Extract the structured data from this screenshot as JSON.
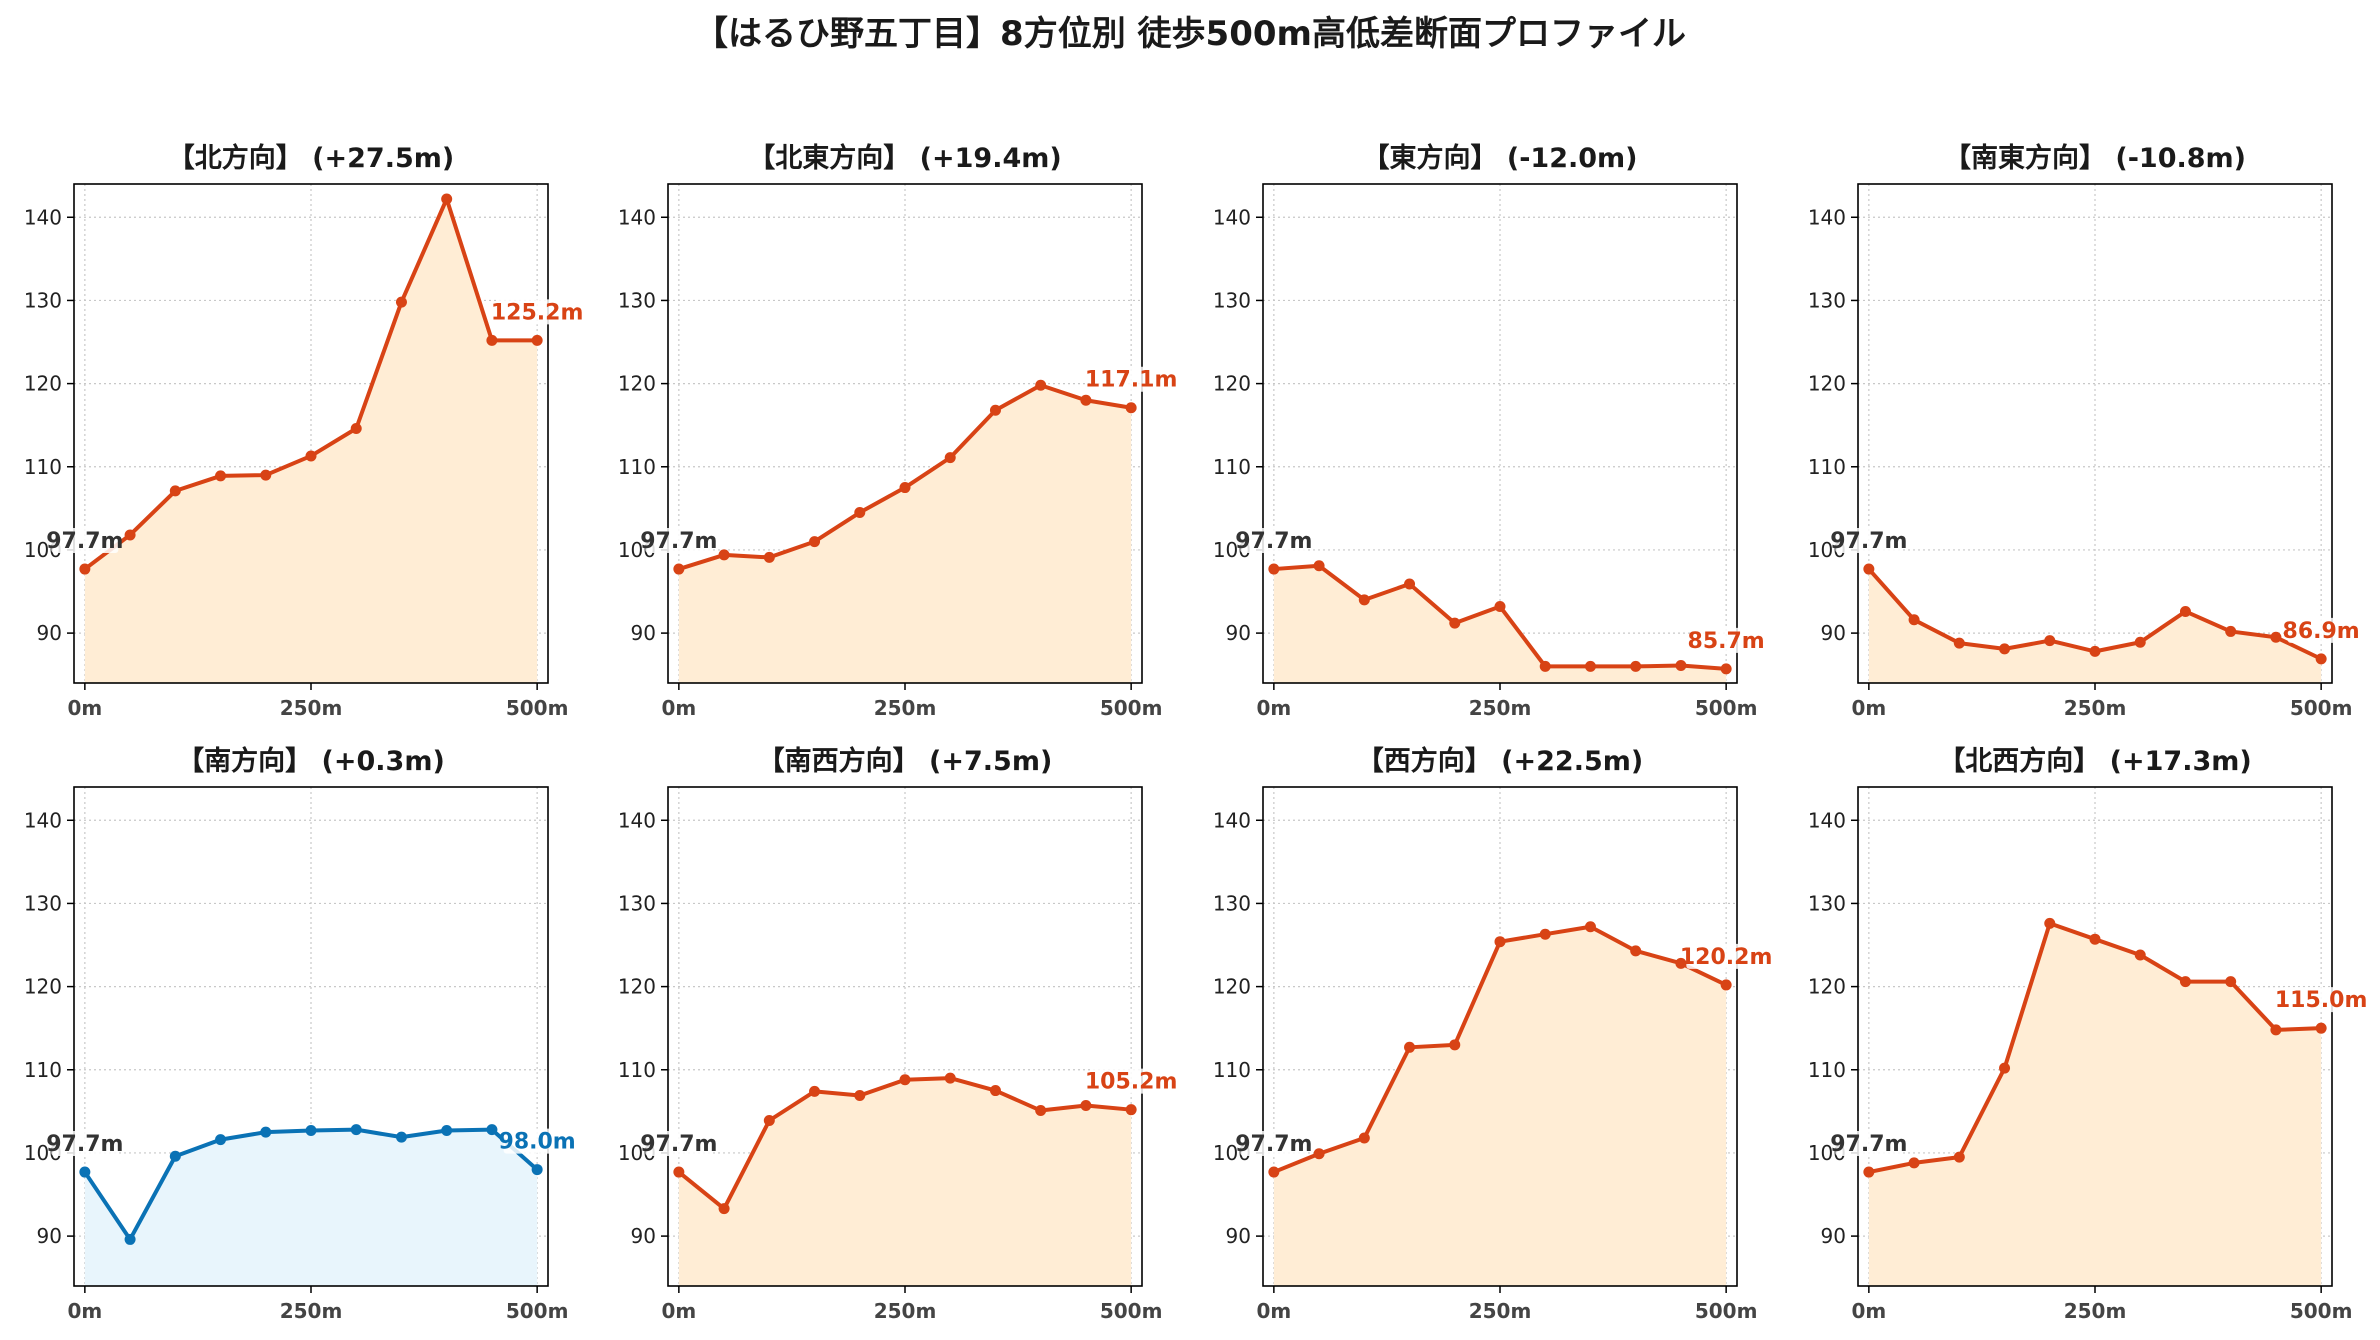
{
  "title": "【はるひ野五丁目】8方位別 徒歩500m高低差断面プロファイル",
  "colors": {
    "up_line": "#d84315",
    "up_fill": "#ffedd5",
    "flat_line": "#0a72b5",
    "flat_fill": "#e8f5fc",
    "start_label": "#333333",
    "grid": "#c8c8c8"
  },
  "chart_data": [
    {
      "type": "area",
      "title": "【北方向】 (+27.5m)",
      "x": [
        0,
        50,
        100,
        150,
        200,
        250,
        300,
        350,
        400,
        450,
        500
      ],
      "values": [
        97.7,
        101.8,
        107.1,
        108.9,
        109.0,
        111.3,
        114.6,
        129.8,
        142.2,
        125.2,
        125.2
      ],
      "start_label": "97.7m",
      "end_label": "125.2m",
      "xticks": [
        "0m",
        "250m",
        "500m"
      ],
      "yticks": [
        90,
        100,
        110,
        120,
        130,
        140
      ],
      "ylim": [
        84,
        144
      ],
      "xlim": [
        -12,
        512
      ],
      "grid": true,
      "color_scheme": "warm"
    },
    {
      "type": "area",
      "title": "【北東方向】 (+19.4m)",
      "x": [
        0,
        50,
        100,
        150,
        200,
        250,
        300,
        350,
        400,
        450,
        500
      ],
      "values": [
        97.7,
        99.4,
        99.1,
        101.0,
        104.5,
        107.5,
        111.1,
        116.8,
        119.8,
        118.0,
        117.1
      ],
      "start_label": "97.7m",
      "end_label": "117.1m",
      "xticks": [
        "0m",
        "250m",
        "500m"
      ],
      "yticks": [
        90,
        100,
        110,
        120,
        130,
        140
      ],
      "ylim": [
        84,
        144
      ],
      "xlim": [
        -12,
        512
      ],
      "grid": true,
      "color_scheme": "warm"
    },
    {
      "type": "area",
      "title": "【東方向】 (-12.0m)",
      "x": [
        0,
        50,
        100,
        150,
        200,
        250,
        300,
        350,
        400,
        450,
        500
      ],
      "values": [
        97.7,
        98.1,
        94.0,
        95.9,
        91.2,
        93.2,
        86.0,
        86.0,
        86.0,
        86.1,
        85.7
      ],
      "start_label": "97.7m",
      "end_label": "85.7m",
      "xticks": [
        "0m",
        "250m",
        "500m"
      ],
      "yticks": [
        90,
        100,
        110,
        120,
        130,
        140
      ],
      "ylim": [
        84,
        144
      ],
      "xlim": [
        -12,
        512
      ],
      "grid": true,
      "color_scheme": "warm"
    },
    {
      "type": "area",
      "title": "【南東方向】 (-10.8m)",
      "x": [
        0,
        50,
        100,
        150,
        200,
        250,
        300,
        350,
        400,
        450,
        500
      ],
      "values": [
        97.7,
        91.6,
        88.8,
        88.1,
        89.1,
        87.8,
        88.9,
        92.6,
        90.2,
        89.5,
        86.9
      ],
      "start_label": "97.7m",
      "end_label": "86.9m",
      "xticks": [
        "0m",
        "250m",
        "500m"
      ],
      "yticks": [
        90,
        100,
        110,
        120,
        130,
        140
      ],
      "ylim": [
        84,
        144
      ],
      "xlim": [
        -12,
        512
      ],
      "grid": true,
      "color_scheme": "warm"
    },
    {
      "type": "area",
      "title": "【南方向】 (+0.3m)",
      "x": [
        0,
        50,
        100,
        150,
        200,
        250,
        300,
        350,
        400,
        450,
        500
      ],
      "values": [
        97.7,
        89.6,
        99.6,
        101.6,
        102.5,
        102.7,
        102.8,
        101.9,
        102.7,
        102.8,
        98.0
      ],
      "start_label": "97.7m",
      "end_label": "98.0m",
      "xticks": [
        "0m",
        "250m",
        "500m"
      ],
      "yticks": [
        90,
        100,
        110,
        120,
        130,
        140
      ],
      "ylim": [
        84,
        144
      ],
      "xlim": [
        -12,
        512
      ],
      "grid": true,
      "color_scheme": "cool"
    },
    {
      "type": "area",
      "title": "【南西方向】 (+7.5m)",
      "x": [
        0,
        50,
        100,
        150,
        200,
        250,
        300,
        350,
        400,
        450,
        500
      ],
      "values": [
        97.7,
        93.3,
        103.9,
        107.4,
        106.9,
        108.8,
        109.0,
        107.5,
        105.1,
        105.7,
        105.2
      ],
      "start_label": "97.7m",
      "end_label": "105.2m",
      "xticks": [
        "0m",
        "250m",
        "500m"
      ],
      "yticks": [
        90,
        100,
        110,
        120,
        130,
        140
      ],
      "ylim": [
        84,
        144
      ],
      "xlim": [
        -12,
        512
      ],
      "grid": true,
      "color_scheme": "warm"
    },
    {
      "type": "area",
      "title": "【西方向】 (+22.5m)",
      "x": [
        0,
        50,
        100,
        150,
        200,
        250,
        300,
        350,
        400,
        450,
        500
      ],
      "values": [
        97.7,
        99.9,
        101.8,
        112.7,
        113.0,
        125.4,
        126.3,
        127.2,
        124.3,
        122.8,
        120.2
      ],
      "start_label": "97.7m",
      "end_label": "120.2m",
      "xticks": [
        "0m",
        "250m",
        "500m"
      ],
      "yticks": [
        90,
        100,
        110,
        120,
        130,
        140
      ],
      "ylim": [
        84,
        144
      ],
      "xlim": [
        -12,
        512
      ],
      "grid": true,
      "color_scheme": "warm"
    },
    {
      "type": "area",
      "title": "【北西方向】 (+17.3m)",
      "x": [
        0,
        50,
        100,
        150,
        200,
        250,
        300,
        350,
        400,
        450,
        500
      ],
      "values": [
        97.7,
        98.8,
        99.5,
        110.2,
        127.6,
        125.7,
        123.8,
        120.6,
        120.6,
        114.8,
        115.0
      ],
      "start_label": "97.7m",
      "end_label": "115.0m",
      "xticks": [
        "0m",
        "250m",
        "500m"
      ],
      "yticks": [
        90,
        100,
        110,
        120,
        130,
        140
      ],
      "ylim": [
        84,
        144
      ],
      "xlim": [
        -12,
        512
      ],
      "grid": true,
      "color_scheme": "warm"
    }
  ]
}
